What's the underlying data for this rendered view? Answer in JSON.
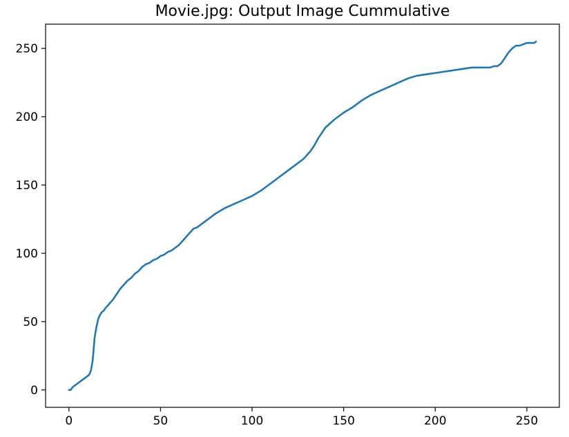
{
  "chart_data": {
    "type": "line",
    "title": "Movie.jpg: Output Image Cummulative",
    "xlabel": "",
    "ylabel": "",
    "xlim": [
      -12.75,
      267.75
    ],
    "ylim": [
      -12.75,
      267.75
    ],
    "xticks": [
      0,
      50,
      100,
      150,
      200,
      250
    ],
    "yticks": [
      0,
      50,
      100,
      150,
      200,
      250
    ],
    "grid": false,
    "series": [
      {
        "color": "#1f77b4",
        "x": [
          0,
          1,
          2,
          4,
          6,
          8,
          10,
          11,
          12,
          13,
          14,
          15,
          16,
          17,
          18,
          19,
          20,
          22,
          24,
          26,
          28,
          30,
          32,
          34,
          36,
          38,
          40,
          42,
          44,
          46,
          48,
          50,
          52,
          54,
          56,
          58,
          60,
          62,
          64,
          66,
          68,
          70,
          75,
          80,
          85,
          90,
          95,
          100,
          105,
          110,
          115,
          120,
          125,
          128,
          130,
          132,
          134,
          136,
          138,
          140,
          145,
          150,
          155,
          160,
          165,
          170,
          175,
          180,
          185,
          190,
          195,
          200,
          205,
          210,
          215,
          220,
          225,
          230,
          232,
          234,
          236,
          238,
          240,
          242,
          244,
          246,
          248,
          250,
          252,
          254,
          255
        ],
        "y": [
          0,
          0,
          2,
          4,
          6,
          8,
          10,
          11,
          14,
          22,
          38,
          46,
          52,
          55,
          57,
          58,
          60,
          63,
          66,
          70,
          74,
          77,
          80,
          82,
          85,
          87,
          90,
          92,
          93,
          95,
          96,
          98,
          99,
          101,
          102,
          104,
          106,
          109,
          112,
          115,
          118,
          119,
          124,
          129,
          133,
          136,
          139,
          142,
          146,
          151,
          156,
          161,
          166,
          169,
          172,
          175,
          179,
          184,
          188,
          192,
          198,
          203,
          207,
          212,
          216,
          219,
          222,
          225,
          228,
          230,
          231,
          232,
          233,
          234,
          235,
          236,
          236,
          236,
          237,
          237,
          239,
          243,
          247,
          250,
          252,
          252,
          253,
          254,
          254,
          254,
          255
        ]
      }
    ]
  }
}
